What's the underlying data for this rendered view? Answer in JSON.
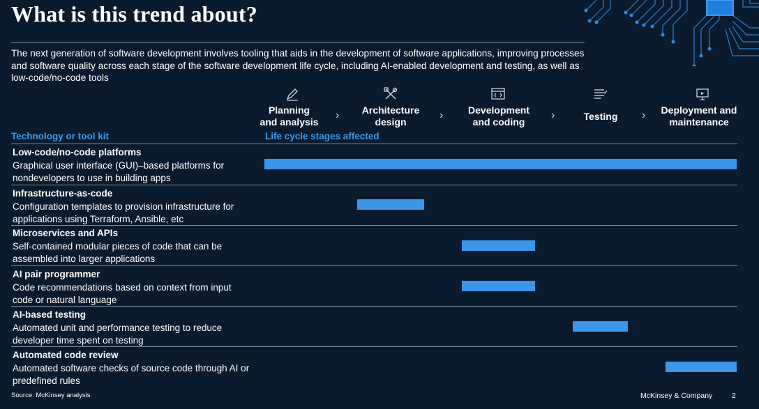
{
  "title": "What is this trend about?",
  "intro": "The next generation of software development involves tooling that aids in the development of software applications, improving processes and software quality across each stage of the software development life cycle, including AI-enabled development and testing, as well as low-code/no-code tools",
  "stages": [
    {
      "label": "Planning\nand analysis",
      "icon": "pencil-icon"
    },
    {
      "label": "Architecture\ndesign",
      "icon": "tools-icon"
    },
    {
      "label": "Development\nand coding",
      "icon": "code-window-icon"
    },
    {
      "label": "Testing",
      "icon": "checklist-icon"
    },
    {
      "label": "Deployment and\nmaintenance",
      "icon": "monitor-icon"
    }
  ],
  "column_headers": {
    "left": "Technology or tool kit",
    "right": "Life cycle stages affected"
  },
  "rows": [
    {
      "name": "Low-code/no-code platforms",
      "desc": "Graphical user interface (GUI)–based platforms for nondevelopers to use in building apps",
      "span_stages": [
        1,
        5
      ]
    },
    {
      "name": "Infrastructure-as-code",
      "desc": "Configuration templates to provision infrastructure for applications using Terraform, Ansible, etc",
      "span_stages": [
        2,
        2
      ]
    },
    {
      "name": "Microservices and APIs",
      "desc": "Self-contained modular pieces of code that can be assembled into larger applications",
      "span_stages": [
        3,
        3
      ]
    },
    {
      "name": "AI pair programmer",
      "desc": "Code recommendations based on context from input code or natural language",
      "span_stages": [
        3,
        3
      ]
    },
    {
      "name": "AI-based testing",
      "desc": "Automated unit and performance testing to reduce developer time spent on testing",
      "span_stages": [
        4,
        4
      ]
    },
    {
      "name": "Automated code review",
      "desc": "Automated software checks of source code through AI or predefined rules",
      "span_stages": [
        5,
        5
      ]
    }
  ],
  "footer": {
    "source": "Source: McKinsey analysis",
    "company": "McKinsey & Company",
    "page": "2"
  },
  "colors": {
    "background": "#0b1b2e",
    "accent": "#3b96ea",
    "header_accent": "#3d9be9"
  }
}
